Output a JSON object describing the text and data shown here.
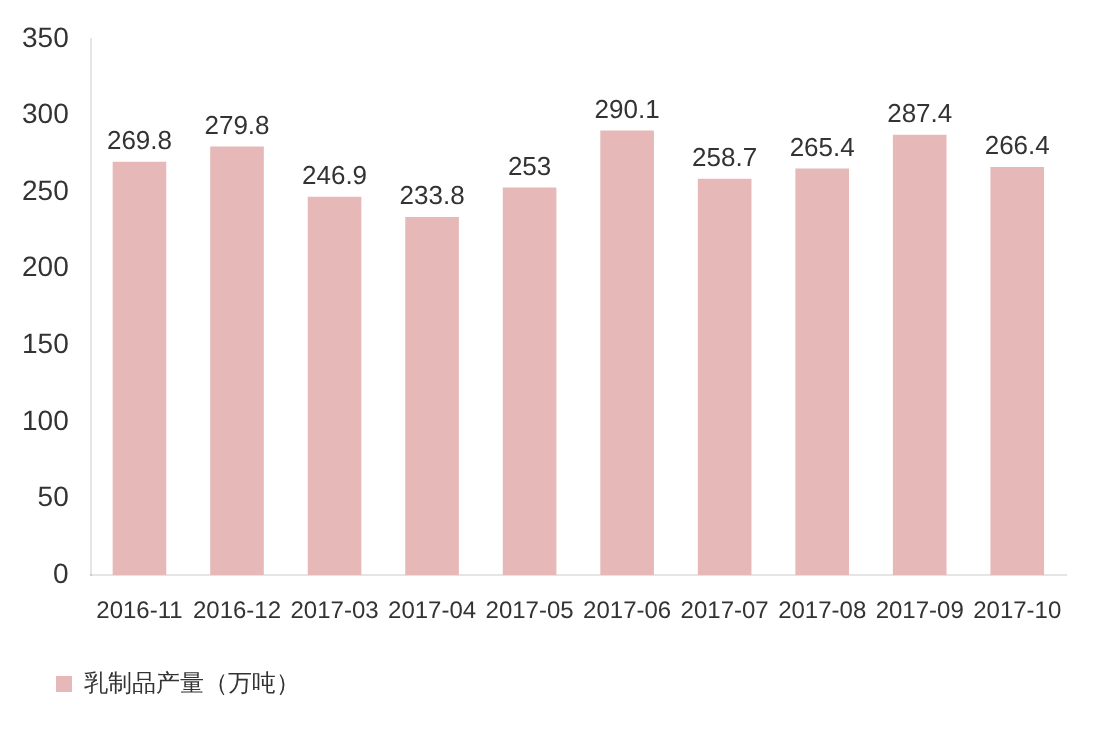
{
  "chart_data": {
    "type": "bar",
    "categories": [
      "2016-11",
      "2016-12",
      "2017-03",
      "2017-04",
      "2017-05",
      "2017-06",
      "2017-07",
      "2017-08",
      "2017-09",
      "2017-10"
    ],
    "series": [
      {
        "name": "乳制品产量（万吨）",
        "color": "#e6b9b8",
        "values": [
          269.8,
          279.8,
          246.9,
          233.8,
          253,
          290.1,
          258.7,
          265.4,
          287.4,
          266.4
        ]
      }
    ],
    "ylim": [
      0,
      350
    ],
    "yticks": [
      0,
      50,
      100,
      150,
      200,
      250,
      300,
      350
    ],
    "grid": false,
    "legend": "bottom",
    "data_labels": true
  }
}
